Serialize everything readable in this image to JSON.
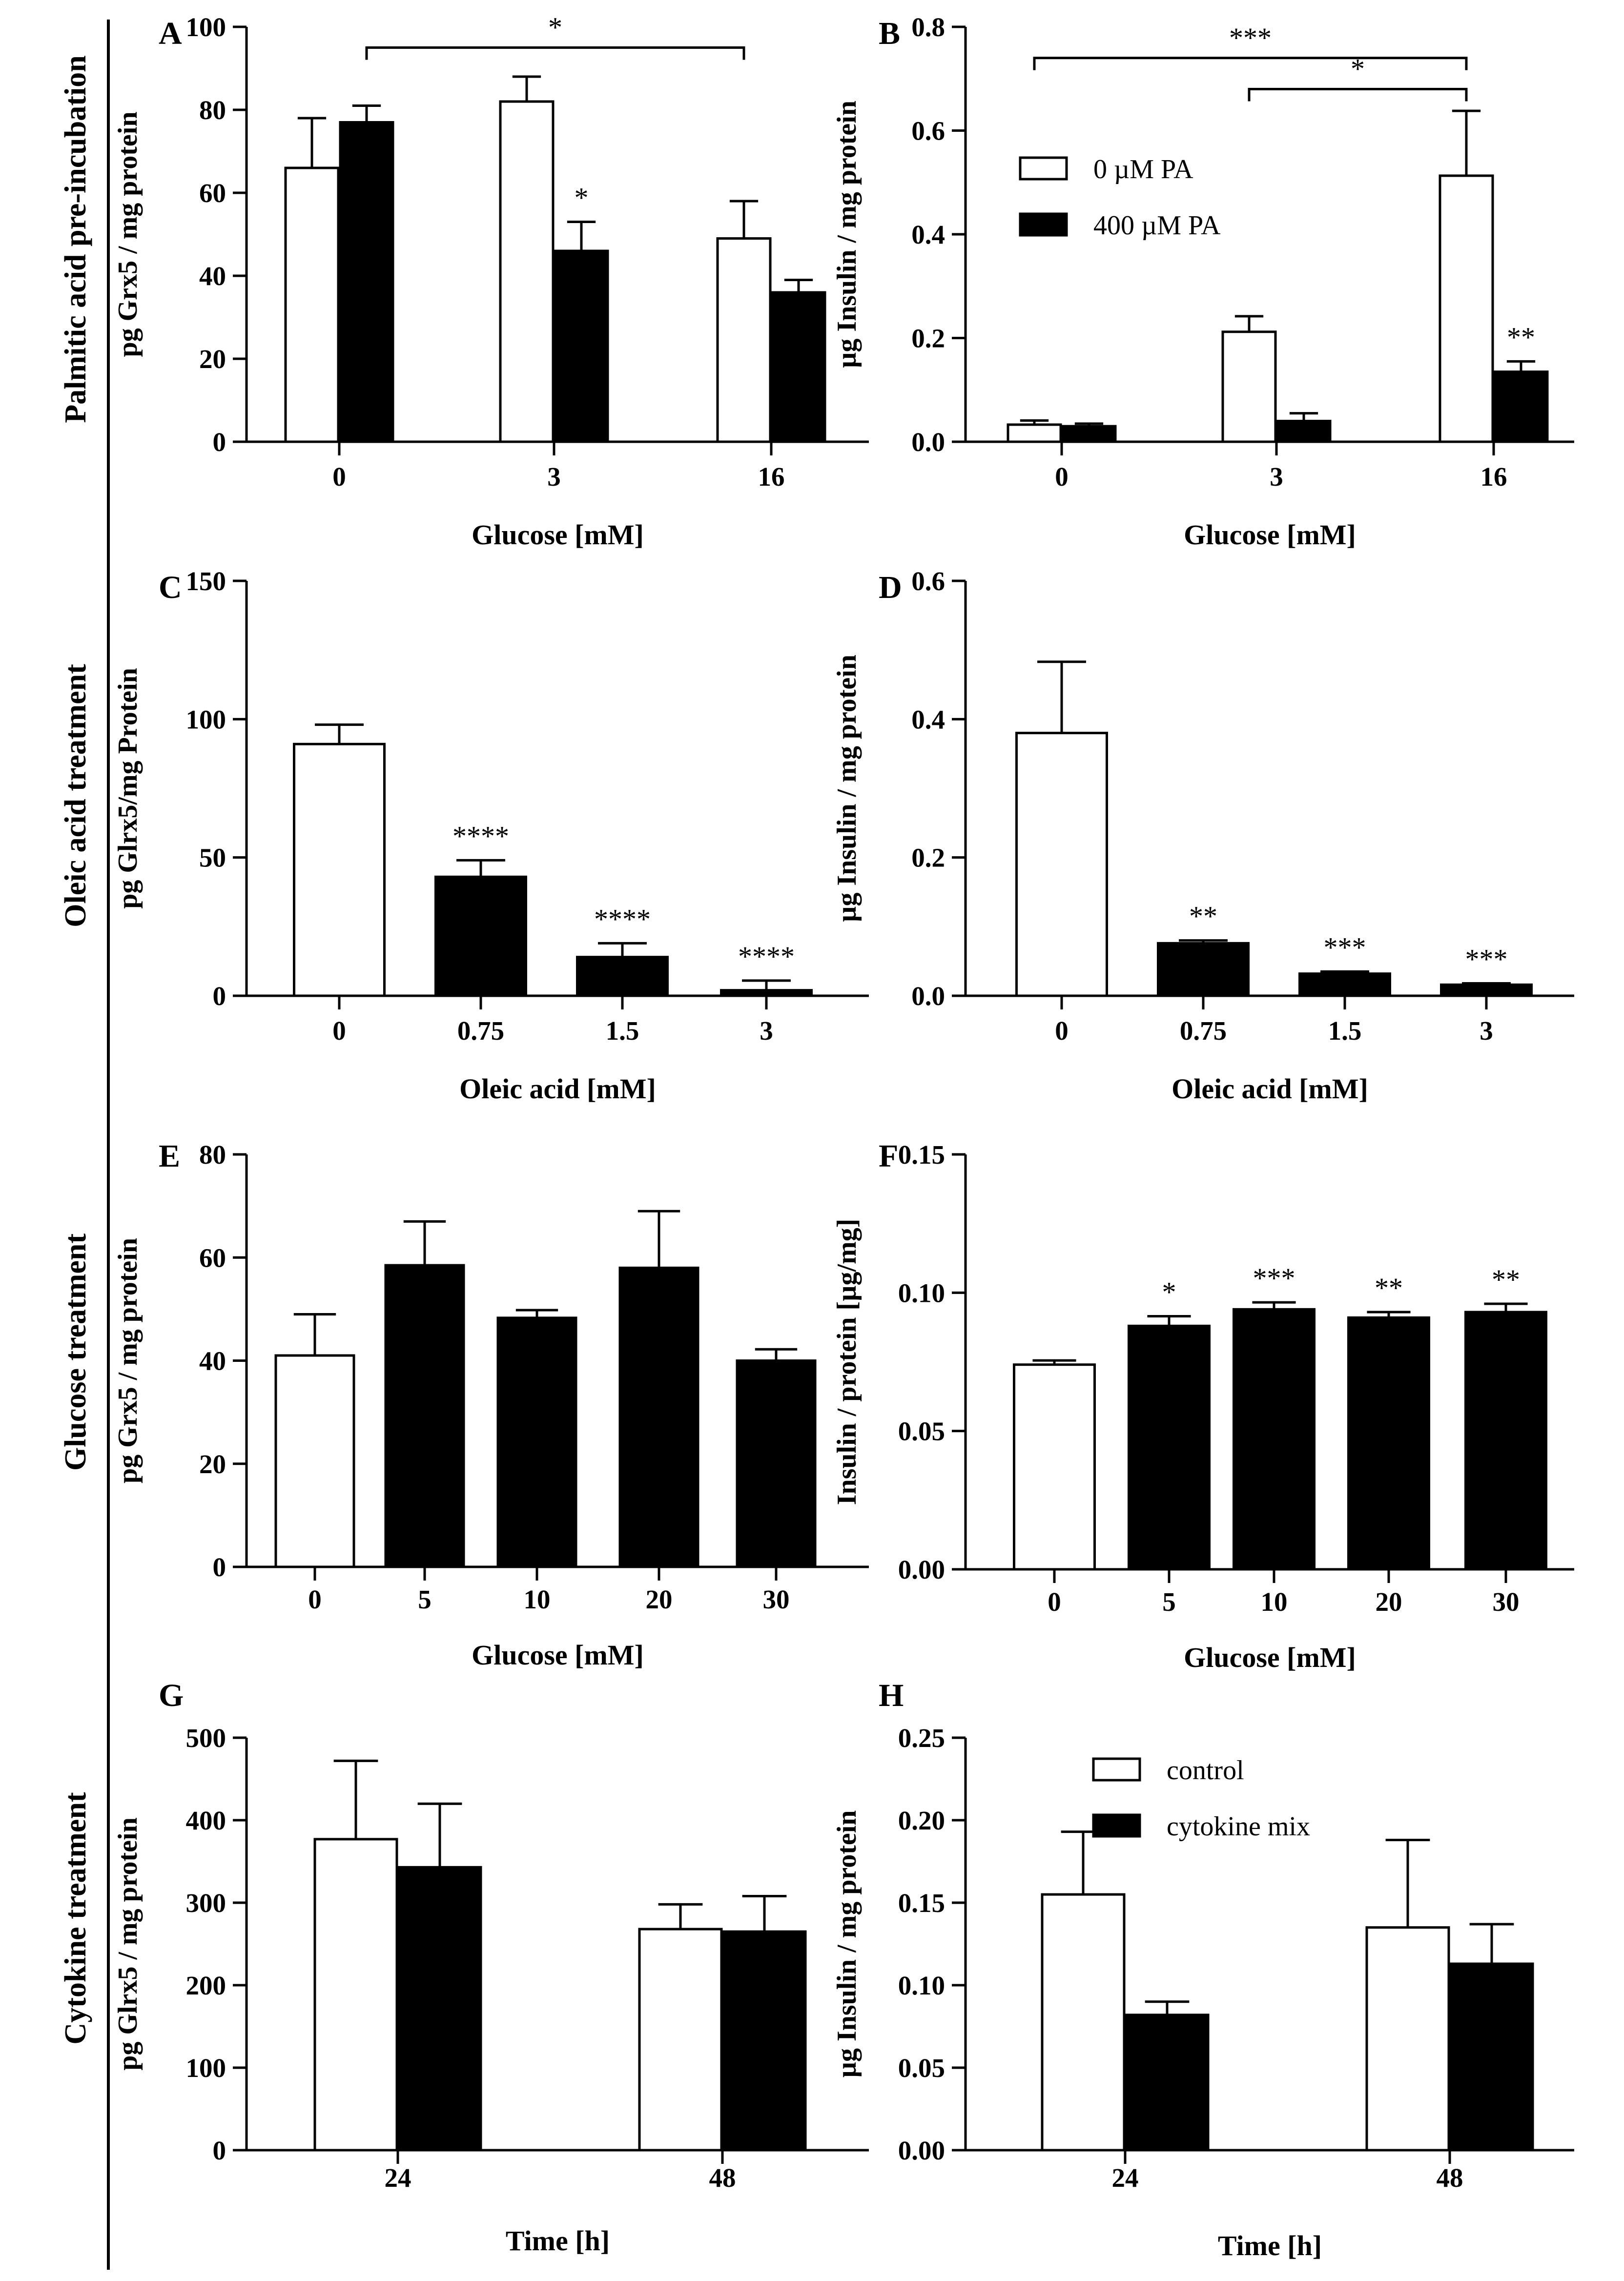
{
  "row_labels": [
    "Palmitic acid pre-incubation",
    "Oleic acid treatment",
    "Glucose treatment",
    "Cytokine treatment"
  ],
  "colors": {
    "white_bar": "#ffffff",
    "black_bar": "#000000",
    "stroke": "#000000"
  },
  "chart_data": [
    {
      "panel": "A",
      "type": "bar",
      "ylabel": "pg Grx5 / mg  protein",
      "xlabel": "Glucose [mM]",
      "ylim": [
        0,
        100
      ],
      "yticks": [
        "0",
        "20",
        "40",
        "60",
        "80",
        "100"
      ],
      "categories": [
        "0",
        "3",
        "16"
      ],
      "series": [
        {
          "name": "0 µM PA",
          "color": "white",
          "values": [
            66,
            82,
            49
          ],
          "errors": [
            12,
            6,
            9
          ],
          "stars": [
            "",
            "",
            ""
          ]
        },
        {
          "name": "400 µM PA",
          "color": "black",
          "values": [
            77,
            46,
            36
          ],
          "errors": [
            4,
            7,
            3
          ],
          "stars": [
            "",
            "*",
            ""
          ]
        }
      ],
      "brackets": [
        {
          "from": "0:black",
          "to": "16:white",
          "level": 95,
          "label": "*"
        }
      ]
    },
    {
      "panel": "B",
      "type": "bar",
      "ylabel": "µg  Insulin  / mg protein",
      "xlabel": "Glucose [mM]",
      "ylim": [
        0,
        0.8
      ],
      "yticks": [
        "0.0",
        "0.2",
        "0.4",
        "0.6",
        "0.8"
      ],
      "categories": [
        "0",
        "3",
        "16"
      ],
      "legend": [
        "0 µM PA",
        "400 µM PA"
      ],
      "series": [
        {
          "name": "0 µM PA",
          "color": "white",
          "values": [
            0.033,
            0.212,
            0.513
          ],
          "errors": [
            0.008,
            0.03,
            0.125
          ],
          "stars": [
            "",
            "",
            ""
          ]
        },
        {
          "name": "400 µM PA",
          "color": "black",
          "values": [
            0.03,
            0.04,
            0.135
          ],
          "errors": [
            0.005,
            0.015,
            0.02
          ],
          "stars": [
            "",
            "",
            "**"
          ]
        }
      ],
      "brackets": [
        {
          "from": "0:white",
          "to": "16:white",
          "level": 0.74,
          "label": "***"
        },
        {
          "from": "3:white",
          "to": "16:white",
          "level": 0.68,
          "label": "*"
        }
      ]
    },
    {
      "panel": "C",
      "type": "bar",
      "ylabel": "pg Glrx5/mg Protein",
      "xlabel": "Oleic acid [mM]",
      "ylim": [
        0,
        150
      ],
      "yticks": [
        "0",
        "50",
        "100",
        "150"
      ],
      "categories": [
        "0",
        "0.75",
        "1.5",
        "3"
      ],
      "values": [
        91,
        43,
        14,
        2
      ],
      "errors": [
        7,
        6,
        5,
        3.5
      ],
      "colors": [
        "white",
        "black",
        "black",
        "black"
      ],
      "stars": [
        "",
        "****",
        "****",
        "****"
      ]
    },
    {
      "panel": "D",
      "type": "bar",
      "ylabel": "µg  Insulin  / mg protein",
      "xlabel": "Oleic acid [mM]",
      "ylim": [
        0,
        0.6
      ],
      "yticks": [
        "0.0",
        "0.2",
        "0.4",
        "0.6"
      ],
      "categories": [
        "0",
        "0.75",
        "1.5",
        "3"
      ],
      "values": [
        0.38,
        0.076,
        0.032,
        0.016
      ],
      "errors": [
        0.103,
        0.004,
        0.003,
        0.002
      ],
      "colors": [
        "white",
        "black",
        "black",
        "black"
      ],
      "stars": [
        "",
        "**",
        "***",
        "***"
      ]
    },
    {
      "panel": "E",
      "type": "bar",
      "ylabel": "pg Grx5 / mg  protein",
      "xlabel": "Glucose [mM]",
      "ylim": [
        0,
        80
      ],
      "yticks": [
        "0",
        "20",
        "40",
        "60",
        "80"
      ],
      "categories": [
        "0",
        "5",
        "10",
        "20",
        "30"
      ],
      "values": [
        41,
        58.5,
        48.3,
        58,
        40
      ],
      "errors": [
        8,
        8.5,
        1.5,
        11,
        2.2
      ],
      "colors": [
        "white",
        "black",
        "black",
        "black",
        "black"
      ],
      "stars": [
        "",
        "",
        "",
        "",
        ""
      ]
    },
    {
      "panel": "F",
      "type": "bar",
      "ylabel": "Insulin / protein [µg/mg]",
      "xlabel": "Glucose [mM]",
      "ylim": [
        0,
        0.15
      ],
      "yticks": [
        "0.00",
        "0.05",
        "0.10",
        "0.15"
      ],
      "categories": [
        "0",
        "5",
        "10",
        "20",
        "30"
      ],
      "values": [
        0.074,
        0.088,
        0.094,
        0.091,
        0.093
      ],
      "errors": [
        0.0015,
        0.0035,
        0.0025,
        0.002,
        0.003
      ],
      "colors": [
        "white",
        "black",
        "black",
        "black",
        "black"
      ],
      "stars": [
        "",
        "*",
        "***",
        "**",
        "**"
      ]
    },
    {
      "panel": "G",
      "type": "bar",
      "ylabel": "pg Glrx5  / mg protein",
      "xlabel": "Time [h]",
      "ylim": [
        0,
        500
      ],
      "yticks": [
        "0",
        "100",
        "200",
        "300",
        "400",
        "500"
      ],
      "categories": [
        "24",
        "48"
      ],
      "series": [
        {
          "name": "control",
          "color": "white",
          "values": [
            377,
            268
          ],
          "errors": [
            95,
            30
          ],
          "stars": [
            "",
            ""
          ]
        },
        {
          "name": "cytokine mix",
          "color": "black",
          "values": [
            343,
            265
          ],
          "errors": [
            77,
            43
          ],
          "stars": [
            "",
            ""
          ]
        }
      ]
    },
    {
      "panel": "H",
      "type": "bar",
      "ylabel": "µg  Insulin  / mg protein",
      "xlabel": "Time [h]",
      "ylim": [
        0,
        0.25
      ],
      "yticks": [
        "0.00",
        "0.05",
        "0.10",
        "0.15",
        "0.20",
        "0.25"
      ],
      "categories": [
        "24",
        "48"
      ],
      "legend": [
        "control",
        "cytokine mix"
      ],
      "series": [
        {
          "name": "control",
          "color": "white",
          "values": [
            0.155,
            0.135
          ],
          "errors": [
            0.038,
            0.053
          ],
          "stars": [
            "",
            ""
          ]
        },
        {
          "name": "cytokine mix",
          "color": "black",
          "values": [
            0.082,
            0.113
          ],
          "errors": [
            0.008,
            0.024
          ],
          "stars": [
            "",
            ""
          ]
        }
      ]
    }
  ]
}
